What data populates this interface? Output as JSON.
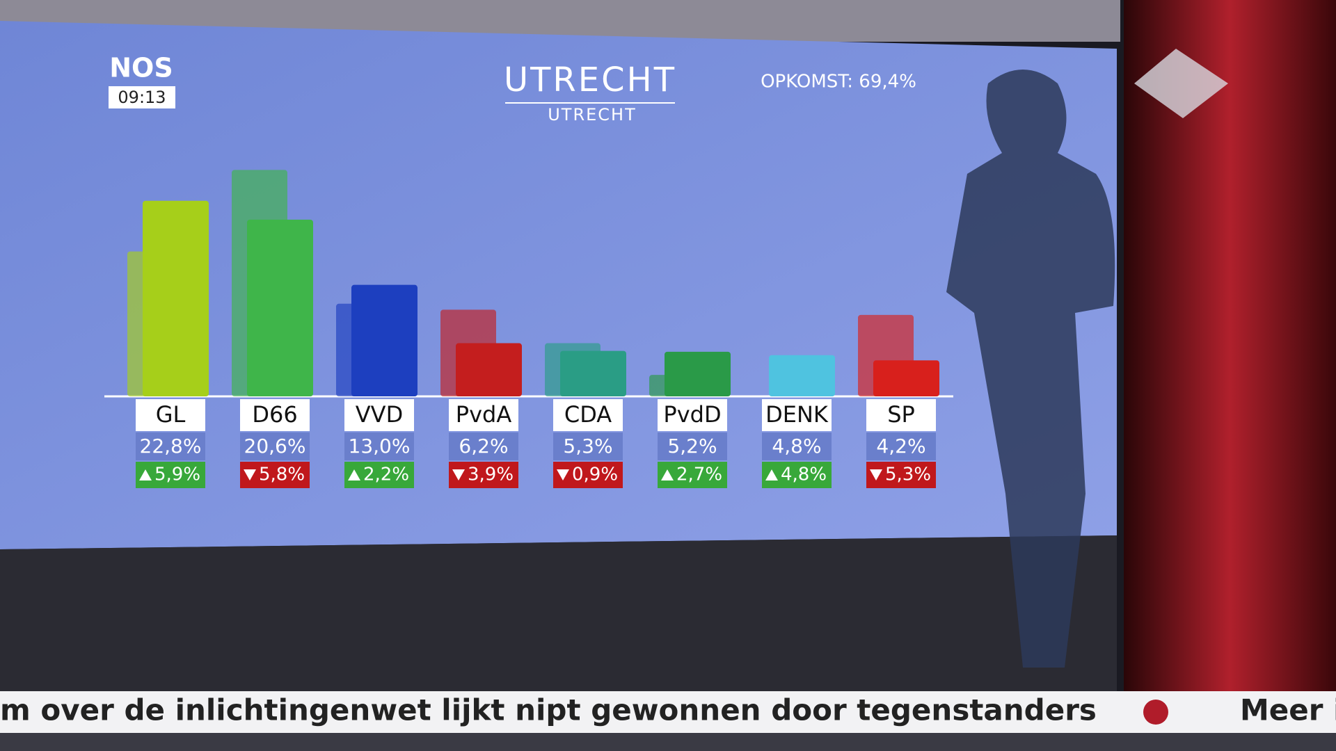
{
  "logo": {
    "brand": "NOS",
    "time": "09:13"
  },
  "chart_data": {
    "type": "bar",
    "title": "UTRECHT",
    "subtitle": "UTRECHT",
    "annotation": "OPKOMST: 69,4%",
    "categories": [
      "GL",
      "D66",
      "VVD",
      "PvdA",
      "CDA",
      "PvdD",
      "DENK",
      "SP"
    ],
    "values": [
      22.8,
      20.6,
      13.0,
      6.2,
      5.3,
      5.2,
      4.8,
      4.2
    ],
    "value_labels": [
      "22,8%",
      "20,6%",
      "13,0%",
      "6,2%",
      "5,3%",
      "5,2%",
      "4,8%",
      "4,2%"
    ],
    "changes": [
      5.9,
      -5.8,
      2.2,
      -3.9,
      -0.9,
      2.7,
      4.8,
      -5.3
    ],
    "change_labels": [
      "5,9%",
      "5,8%",
      "2,2%",
      "3,9%",
      "0,9%",
      "2,7%",
      "4,8%",
      "5,3%"
    ],
    "previous": [
      16.9,
      26.4,
      10.8,
      10.1,
      6.2,
      2.5,
      0,
      9.5
    ],
    "colors": [
      "#a6cf1a",
      "#3fb54a",
      "#1d3fbf",
      "#c41e1e",
      "#2a9d85",
      "#2a9a48",
      "#4fc3e0",
      "#d8201c"
    ],
    "ylim": [
      0,
      30
    ]
  },
  "ticker": {
    "text": "m over de inlichtingenwet lijkt nipt gewonnen door tegenstanders",
    "next": "Meer i"
  }
}
